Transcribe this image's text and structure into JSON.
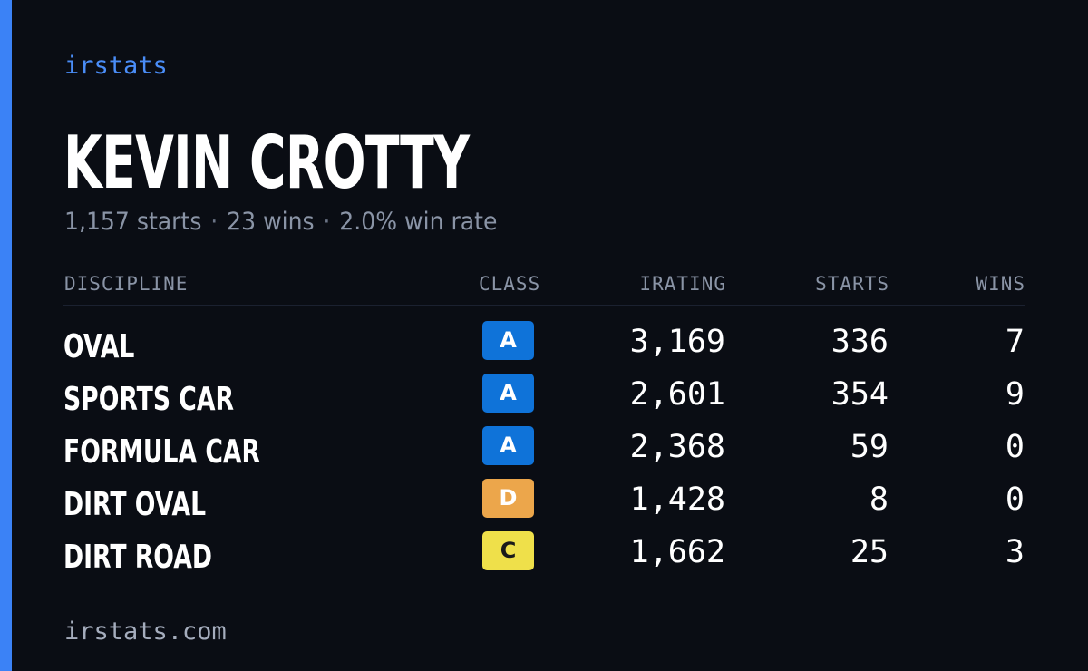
{
  "brand": "irstats",
  "driver": {
    "name": "KEVIN CROTTY",
    "starts_text": "1,157 starts",
    "wins_text": "23 wins",
    "win_rate_text": "2.0% win rate",
    "separator": "·"
  },
  "table": {
    "headers": {
      "discipline": "DISCIPLINE",
      "class": "CLASS",
      "irating": "IRATING",
      "starts": "STARTS",
      "wins": "WINS"
    },
    "rows": [
      {
        "discipline": "OVAL",
        "class": "A",
        "class_color": "#0f73d9",
        "class_text_color": "#ffffff",
        "irating": "3,169",
        "starts": "336",
        "wins": "7"
      },
      {
        "discipline": "SPORTS CAR",
        "class": "A",
        "class_color": "#0f73d9",
        "class_text_color": "#ffffff",
        "irating": "2,601",
        "starts": "354",
        "wins": "9"
      },
      {
        "discipline": "FORMULA CAR",
        "class": "A",
        "class_color": "#0f73d9",
        "class_text_color": "#ffffff",
        "irating": "2,368",
        "starts": "59",
        "wins": "0"
      },
      {
        "discipline": "DIRT OVAL",
        "class": "D",
        "class_color": "#eca64b",
        "class_text_color": "#ffffff",
        "irating": "1,428",
        "starts": "8",
        "wins": "0"
      },
      {
        "discipline": "DIRT ROAD",
        "class": "C",
        "class_color": "#efe04a",
        "class_text_color": "#1a1a1a",
        "irating": "1,662",
        "starts": "25",
        "wins": "3"
      }
    ]
  },
  "footer": {
    "site": "irstats.com"
  },
  "colors": {
    "accent": "#3b82f6",
    "background": "#0a0d14"
  }
}
